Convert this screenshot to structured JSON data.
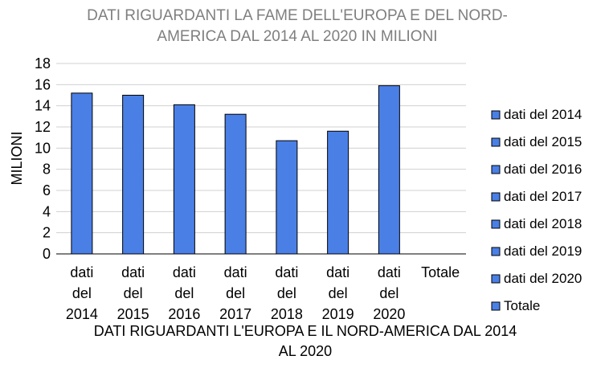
{
  "chart_data": {
    "type": "bar",
    "title_lines": [
      "DATI RIGUARDANTI LA FAME DELL'EUROPA E DEL NORD-",
      "AMERICA DAL 2014 AL 2020 IN MILIONI"
    ],
    "xlabel_lines": [
      "DATI RIGUARDANTI L'EUROPA E IL NORD-AMERICA DAL 2014",
      "AL 2020"
    ],
    "ylabel": "MILIONI",
    "categories": [
      [
        "dati",
        "del",
        "2014"
      ],
      [
        "dati",
        "del",
        "2015"
      ],
      [
        "dati",
        "del",
        "2016"
      ],
      [
        "dati",
        "del",
        "2017"
      ],
      [
        "dati",
        "del",
        "2018"
      ],
      [
        "dati",
        "del",
        "2019"
      ],
      [
        "dati",
        "del",
        "2020"
      ],
      [
        "Totale"
      ]
    ],
    "values": [
      15.2,
      15.0,
      14.1,
      13.2,
      10.7,
      11.6,
      15.9,
      null
    ],
    "ylim": [
      0,
      18
    ],
    "yticks": [
      0,
      2,
      4,
      6,
      8,
      10,
      12,
      14,
      16,
      18
    ],
    "grid": true,
    "legend_position": "right",
    "legend": [
      "dati del 2014",
      "dati del 2015",
      "dati del 2016",
      "dati del 2017",
      "dati del 2018",
      "dati del 2019",
      "dati del 2020",
      "Totale"
    ],
    "colors": {
      "bar": "#4a7fe6",
      "bar_stroke": "#000000",
      "grid": "#d0d0d0",
      "title": "#7f7f7f"
    }
  }
}
